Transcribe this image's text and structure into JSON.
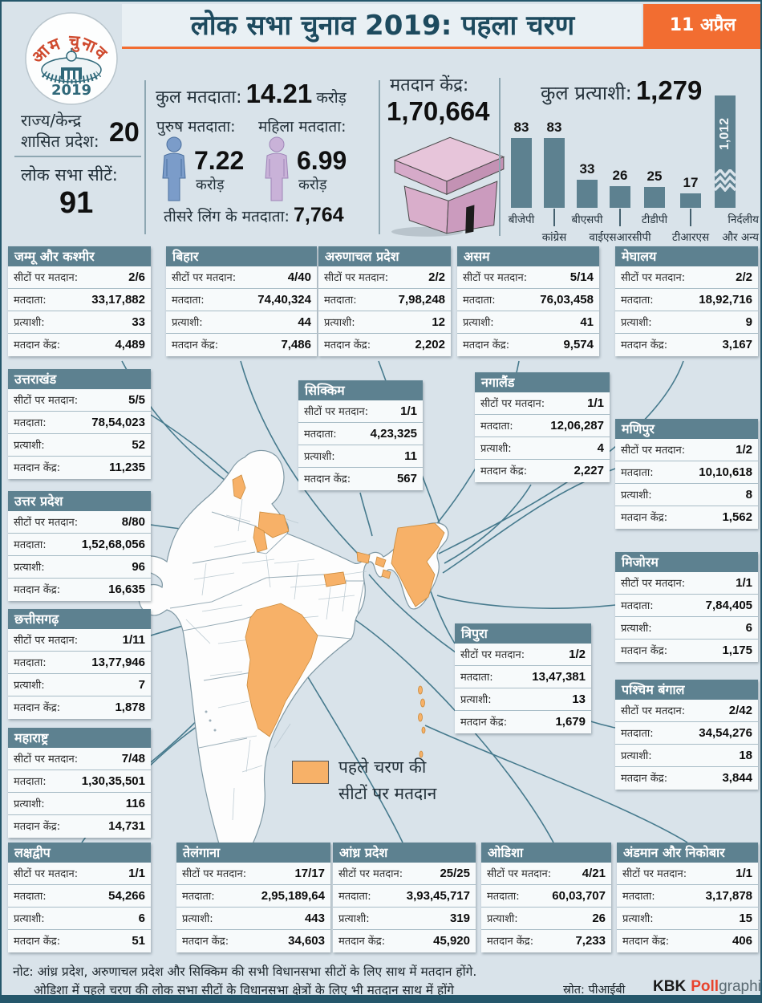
{
  "colors": {
    "accent_orange": "#f26d31",
    "map_orange": "#f7b168",
    "slate": "#5d8190",
    "title_teal": "#1d4a5e",
    "background": "#d9e3ea",
    "brand_red": "#e8432d"
  },
  "header": {
    "title": "लोक सभा चुनाव 2019: पहला चरण",
    "date_badge": "11 अप्रैल",
    "logo_arc": "आम चुनाव",
    "logo_year": "2019"
  },
  "key_stats": {
    "states_line1": "राज्य/केन्द्र",
    "states_line2": "शासित प्रदेश:",
    "states_value": "20",
    "seats_label": "लोक सभा सीटें:",
    "seats_value": "91",
    "total_voters_label": "कुल मतदाता:",
    "total_voters_value": "14.21",
    "total_voters_unit": "करोड़",
    "male_label": "पुरुष मतदाता:",
    "male_value": "7.22",
    "male_unit": "करोड़",
    "female_label": "महिला मतदाता:",
    "female_value": "6.99",
    "female_unit": "करोड़",
    "third_gender_label": "तीसरे लिंग के मतदाता:",
    "third_gender_value": "7,764",
    "booths_label": "मतदान केंद्र:",
    "booths_value": "1,70,664"
  },
  "chart_data": {
    "type": "bar",
    "title": "कुल प्रत्याशी:",
    "total_value": "1,279",
    "categories": [
      "बीजेपी",
      "कांग्रेस",
      "बीएसपी",
      "वाईएसआरसीपी",
      "टीडीपी",
      "टीआरएस",
      "निर्दलीय और अन्य"
    ],
    "values": [
      83,
      83,
      33,
      26,
      25,
      17,
      1012
    ],
    "value_labels": [
      "83",
      "83",
      "33",
      "26",
      "25",
      "17",
      "1,012"
    ],
    "broken_bar_index": 6,
    "bar_color": "#5d8190",
    "ylabel": "",
    "xlabel": "",
    "legend_position": "none",
    "grid": false
  },
  "row_labels": {
    "seats": "सीटों पर मतदान:",
    "voters": "मतदाता:",
    "candidates": "प्रत्याशी:",
    "booths": "मतदान केंद्र:"
  },
  "states": [
    {
      "name": "जम्मू और कश्मीर",
      "seats": "2/6",
      "voters": "33,17,882",
      "candidates": "33",
      "booths": "4,489"
    },
    {
      "name": "बिहार",
      "seats": "4/40",
      "voters": "74,40,324",
      "candidates": "44",
      "booths": "7,486"
    },
    {
      "name": "अरुणाचल प्रदेश",
      "seats": "2/2",
      "voters": "7,98,248",
      "candidates": "12",
      "booths": "2,202"
    },
    {
      "name": "असम",
      "seats": "5/14",
      "voters": "76,03,458",
      "candidates": "41",
      "booths": "9,574"
    },
    {
      "name": "मेघालय",
      "seats": "2/2",
      "voters": "18,92,716",
      "candidates": "9",
      "booths": "3,167"
    },
    {
      "name": "उत्तराखंड",
      "seats": "5/5",
      "voters": "78,54,023",
      "candidates": "52",
      "booths": "11,235"
    },
    {
      "name": "सिक्किम",
      "seats": "1/1",
      "voters": "4,23,325",
      "candidates": "11",
      "booths": "567"
    },
    {
      "name": "नगालैंड",
      "seats": "1/1",
      "voters": "12,06,287",
      "candidates": "4",
      "booths": "2,227"
    },
    {
      "name": "मणिपुर",
      "seats": "1/2",
      "voters": "10,10,618",
      "candidates": "8",
      "booths": "1,562"
    },
    {
      "name": "उत्तर प्रदेश",
      "seats": "8/80",
      "voters": "1,52,68,056",
      "candidates": "96",
      "booths": "16,635"
    },
    {
      "name": "मिजोरम",
      "seats": "1/1",
      "voters": "7,84,405",
      "candidates": "6",
      "booths": "1,175"
    },
    {
      "name": "छत्तीसगढ़",
      "seats": "1/11",
      "voters": "13,77,946",
      "candidates": "7",
      "booths": "1,878"
    },
    {
      "name": "त्रिपुरा",
      "seats": "1/2",
      "voters": "13,47,381",
      "candidates": "13",
      "booths": "1,679"
    },
    {
      "name": "पश्चिम बंगाल",
      "seats": "2/42",
      "voters": "34,54,276",
      "candidates": "18",
      "booths": "3,844"
    },
    {
      "name": "महाराष्ट्र",
      "seats": "7/48",
      "voters": "1,30,35,501",
      "candidates": "116",
      "booths": "14,731"
    },
    {
      "name": "लक्षद्वीप",
      "seats": "1/1",
      "voters": "54,266",
      "candidates": "6",
      "booths": "51"
    },
    {
      "name": "तेलंगाना",
      "seats": "17/17",
      "voters": "2,95,189,64",
      "candidates": "443",
      "booths": "34,603"
    },
    {
      "name": "आंध्र प्रदेश",
      "seats": "25/25",
      "voters": "3,93,45,717",
      "candidates": "319",
      "booths": "45,920"
    },
    {
      "name": "ओडिशा",
      "seats": "4/21",
      "voters": "60,03,707",
      "candidates": "26",
      "booths": "7,233"
    },
    {
      "name": "अंडमान और निकोबार",
      "seats": "1/1",
      "voters": "3,17,878",
      "candidates": "15",
      "booths": "406"
    }
  ],
  "legend": {
    "line1": "पहले चरण की",
    "line2": "सीटों पर मतदान"
  },
  "footer": {
    "note1": "नोट: आंध्र प्रदेश, अरुणाचल प्रदेश और सिक्किम की सभी विधानसभा सीटों के लिए साथ में मतदान होंगे.",
    "note2": "ओडिशा में पहले चरण की लोक सभा सीटों के विधानसभा क्षेत्रों के लिए भी मतदान साथ में होंगे",
    "source": "स्रोत: पीआईबी",
    "brand_bold": "KBK",
    "brand_red": "Poll",
    "brand_gray": "graphics"
  }
}
